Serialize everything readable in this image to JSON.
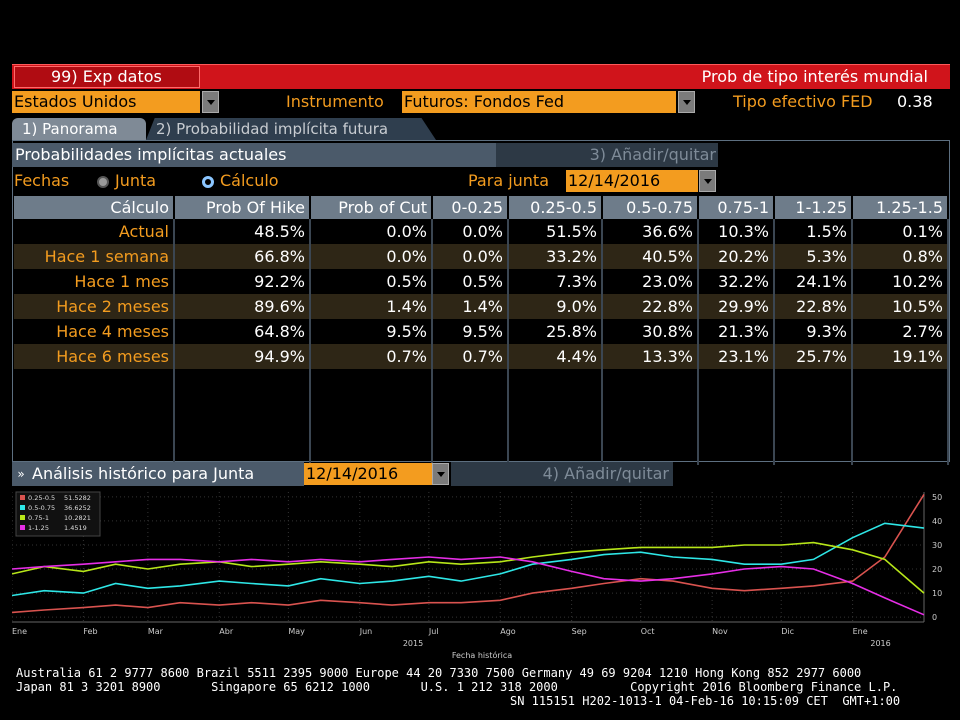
{
  "header": {
    "function_label": "99) Exp datos",
    "title": "Prob de tipo interés mundial"
  },
  "controls": {
    "country": "Estados Unidos",
    "instrument_label": "Instrumento",
    "instrument": "Futuros: Fondos Fed",
    "effective_rate_label": "Tipo efectivo FED",
    "effective_rate": "0.38"
  },
  "tabs": [
    {
      "label": "1) Panorama"
    },
    {
      "label": "2) Probabilidad implícita futura"
    }
  ],
  "panel": {
    "title": "Probabilidades implícitas actuales",
    "add_remove": "3) Añadir/quitar",
    "dates_label": "Fechas",
    "option_meeting": "Junta",
    "option_calc": "Cálculo",
    "for_meeting_label": "Para junta",
    "meeting_date": "12/14/2016"
  },
  "table": {
    "headers": [
      "Cálculo",
      "Prob Of Hike",
      "Prob of Cut",
      "0-0.25",
      "0.25-0.5",
      "0.5-0.75",
      "0.75-1",
      "1-1.25",
      "1.25-1.5"
    ],
    "rows": [
      [
        "Actual",
        "48.5%",
        "0.0%",
        "0.0%",
        "51.5%",
        "36.6%",
        "10.3%",
        "1.5%",
        "0.1%"
      ],
      [
        "Hace 1 semana",
        "66.8%",
        "0.0%",
        "0.0%",
        "33.2%",
        "40.5%",
        "20.2%",
        "5.3%",
        "0.8%"
      ],
      [
        "Hace 1 mes",
        "92.2%",
        "0.5%",
        "0.5%",
        "7.3%",
        "23.0%",
        "32.2%",
        "24.1%",
        "10.2%"
      ],
      [
        "Hace 2 meses",
        "89.6%",
        "1.4%",
        "1.4%",
        "9.0%",
        "22.8%",
        "29.9%",
        "22.8%",
        "10.5%"
      ],
      [
        "Hace 4 meses",
        "64.8%",
        "9.5%",
        "9.5%",
        "25.8%",
        "30.8%",
        "21.3%",
        "9.3%",
        "2.7%"
      ],
      [
        "Hace 6 meses",
        "94.9%",
        "0.7%",
        "0.7%",
        "4.4%",
        "13.3%",
        "23.1%",
        "25.7%",
        "19.1%"
      ]
    ]
  },
  "history": {
    "collapse_glyph": "»",
    "title": "Análisis histórico para Junta",
    "meeting_date": "12/14/2016",
    "add_remove": "4) Añadir/quitar"
  },
  "colors": {
    "orange": "#f39c1f",
    "red_bar": "#d0141b",
    "s1": "#d9534f",
    "s2": "#2ee6e6",
    "s3": "#b7e619",
    "s4": "#e62ee6"
  },
  "chart_data": {
    "type": "line",
    "xlabel": "Fecha histórica",
    "month_ticks": [
      "Ene",
      "Feb",
      "Mar",
      "Abr",
      "May",
      "Jun",
      "Jul",
      "Ago",
      "Sep",
      "Oct",
      "Nov",
      "Dic",
      "Ene"
    ],
    "year_ticks": [
      "2015",
      "2016"
    ],
    "y_ticks": [
      0,
      10,
      20,
      30,
      40,
      50
    ],
    "ylim": [
      -2,
      52
    ],
    "legend": [
      {
        "name": "0.25-0.5",
        "value": "51.5282"
      },
      {
        "name": "0.5-0.75",
        "value": "36.6252"
      },
      {
        "name": "0.75-1",
        "value": "10.2821"
      },
      {
        "name": "1-1.25",
        "value": "1.4519"
      }
    ],
    "x": [
      "2015-01-01",
      "2015-01-15",
      "2015-02-01",
      "2015-02-15",
      "2015-03-01",
      "2015-03-15",
      "2015-04-01",
      "2015-04-15",
      "2015-05-01",
      "2015-05-15",
      "2015-06-01",
      "2015-06-15",
      "2015-07-01",
      "2015-07-15",
      "2015-08-01",
      "2015-08-15",
      "2015-09-01",
      "2015-09-15",
      "2015-10-01",
      "2015-10-15",
      "2015-11-01",
      "2015-11-15",
      "2015-12-01",
      "2015-12-15",
      "2016-01-01",
      "2016-01-15",
      "2016-02-01"
    ],
    "series": [
      {
        "name": "0.25-0.5",
        "values": [
          2,
          3,
          4,
          5,
          4,
          6,
          5,
          6,
          5,
          7,
          6,
          5,
          6,
          6,
          7,
          10,
          12,
          14,
          16,
          15,
          12,
          11,
          12,
          13,
          15,
          25,
          51
        ]
      },
      {
        "name": "0.5-0.75",
        "values": [
          9,
          11,
          10,
          14,
          12,
          13,
          15,
          14,
          13,
          16,
          14,
          15,
          17,
          15,
          18,
          22,
          24,
          26,
          27,
          25,
          24,
          22,
          22,
          24,
          33,
          39,
          37
        ]
      },
      {
        "name": "0.75-1",
        "values": [
          18,
          21,
          19,
          22,
          20,
          22,
          23,
          21,
          22,
          23,
          22,
          21,
          23,
          22,
          23,
          25,
          27,
          28,
          29,
          29,
          29,
          30,
          30,
          31,
          28,
          24,
          10
        ]
      },
      {
        "name": "1-1.25",
        "values": [
          20,
          21,
          22,
          23,
          24,
          24,
          23,
          24,
          23,
          24,
          23,
          24,
          25,
          24,
          25,
          23,
          19,
          16,
          15,
          16,
          18,
          20,
          21,
          20,
          14,
          8,
          1
        ]
      }
    ]
  },
  "footer": {
    "line1": "Australia 61 2 9777 8600 Brazil 5511 2395 9000 Europe 44 20 7330 7500 Germany 49 69 9204 1210 Hong Kong 852 2977 6000",
    "line2": "Japan 81 3 3201 8900       Singapore 65 6212 1000       U.S. 1 212 318 2000          Copyright 2016 Bloomberg Finance L.P.",
    "line3": "SN 115151 H202-1013-1 04-Feb-16 10:15:09 CET  GMT+1:00"
  }
}
